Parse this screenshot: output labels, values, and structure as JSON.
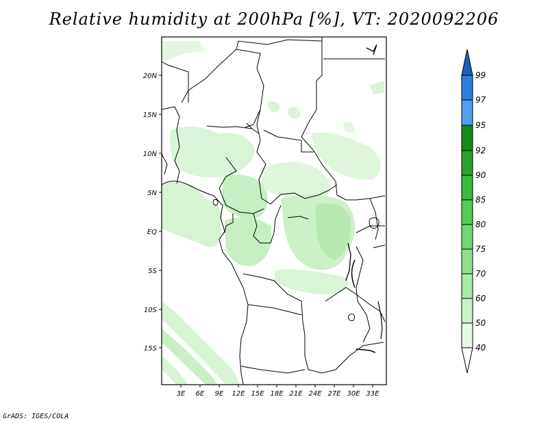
{
  "title": "Relative humidity at 200hPa [%], VT: 2020092206",
  "credit": "GrADS: IGES/COLA",
  "map": {
    "lon_ticks": [
      "3E",
      "6E",
      "9E",
      "12E",
      "15E",
      "18E",
      "21E",
      "24E",
      "27E",
      "30E",
      "33E"
    ],
    "lat_ticks": [
      "20N",
      "15N",
      "10N",
      "5N",
      "EQ",
      "5S",
      "10S",
      "15S"
    ]
  },
  "colorbar": {
    "levels": [
      "40",
      "50",
      "60",
      "70",
      "75",
      "80",
      "85",
      "90",
      "92",
      "95",
      "97",
      "99"
    ],
    "colors": [
      "#ffffff",
      "#e6fae6",
      "#c9f2c9",
      "#a8eaa8",
      "#8ee08e",
      "#73d873",
      "#55cc55",
      "#3ab93a",
      "#2aa22a",
      "#178b17",
      "#4d9ff0",
      "#2e7fe0",
      "#1f5fbf"
    ]
  }
}
